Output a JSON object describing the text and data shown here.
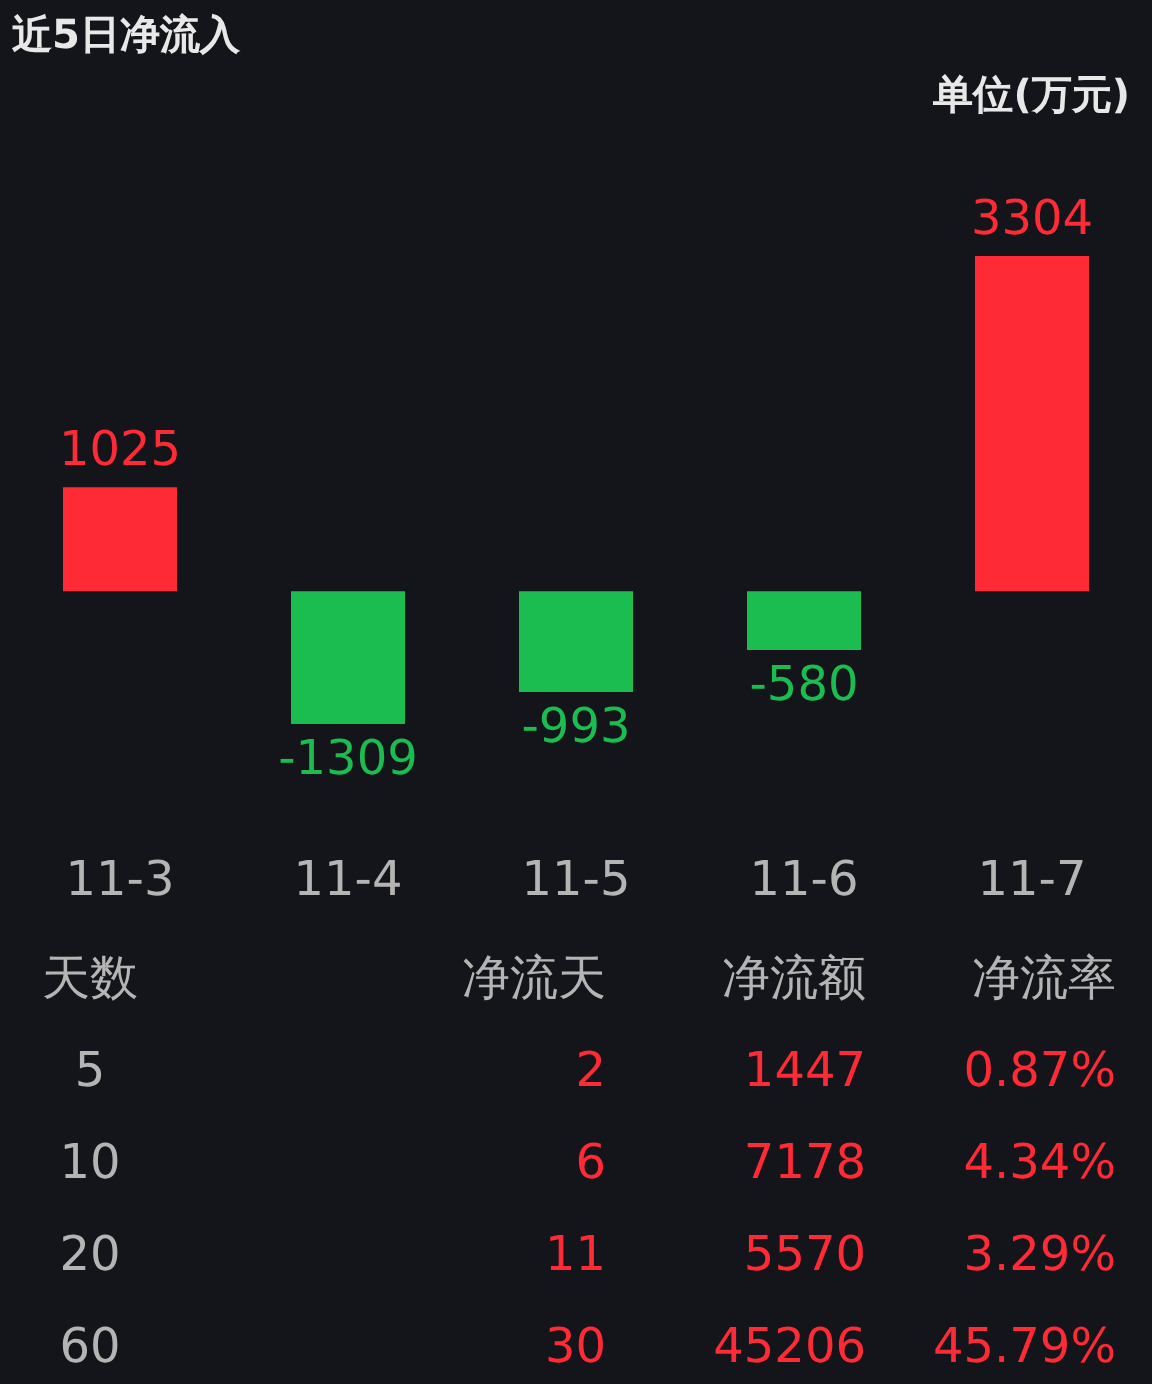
{
  "chart_data": [
    {
      "type": "bar",
      "title": "近5日净流入",
      "annotations": [
        "单位(万元)"
      ],
      "categories": [
        "11-3",
        "11-4",
        "11-5",
        "11-6",
        "11-7"
      ],
      "values": [
        1025,
        -1309,
        -993,
        -580,
        3304
      ],
      "colors": [
        "#fe2a35",
        "#1bbc50",
        "#1bbc50",
        "#1bbc50",
        "#fe2a35"
      ],
      "data_labels": true,
      "grid": false
    },
    {
      "type": "other",
      "annotations": [
        "天数",
        "净流天",
        "净流额",
        "净流率",
        "5",
        "2",
        "1447",
        "0.87%",
        "10",
        "6",
        "7178",
        "4.34%",
        "20",
        "11",
        "5570",
        "3.29%",
        "60",
        "30",
        "45206",
        "45.79%"
      ],
      "colors": [
        "#b4b4b4",
        "#b4b4b4",
        "#b4b4b4",
        "#b4b4b4",
        "#b4b4b4",
        "#fe2a35",
        "#fe2a35",
        "#fe2a35",
        "#b4b4b4",
        "#fe2a35",
        "#fe2a35",
        "#fe2a35",
        "#b4b4b4",
        "#fe2a35",
        "#fe2a35",
        "#fe2a35",
        "#b4b4b4",
        "#fe2a35",
        "#fe2a35",
        "#fe2a35"
      ]
    }
  ]
}
